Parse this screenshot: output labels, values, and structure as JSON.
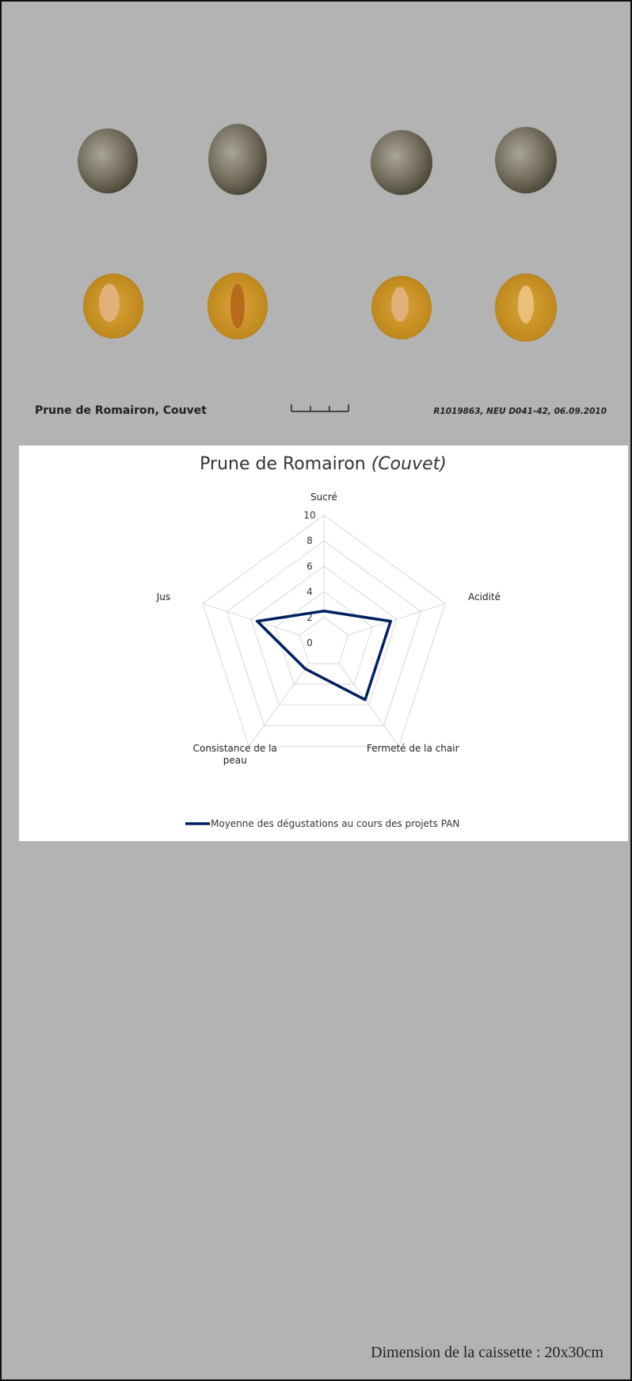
{
  "caption": "Prune de Romairon, Couvet",
  "reference": "R1019863, NEU D041-42, 06.09.2010",
  "footer": "Dimension de la caissette : 20x30cm",
  "chart_data": {
    "type": "radar",
    "title": "Prune de Romairon",
    "subtitle": "(Couvet)",
    "categories": [
      "Sucré",
      "Acidité",
      "Fermeté de la chair",
      "Consistance de la peau",
      "Jus"
    ],
    "series": [
      {
        "name": "Moyenne des dégustations au cours des projets PAN",
        "color": "#002060",
        "values": [
          2.5,
          5.5,
          5.5,
          2.5,
          5.5
        ]
      }
    ],
    "ylim": [
      0,
      10
    ],
    "yticks": [
      0,
      2,
      4,
      6,
      8,
      10
    ],
    "grid": true
  }
}
